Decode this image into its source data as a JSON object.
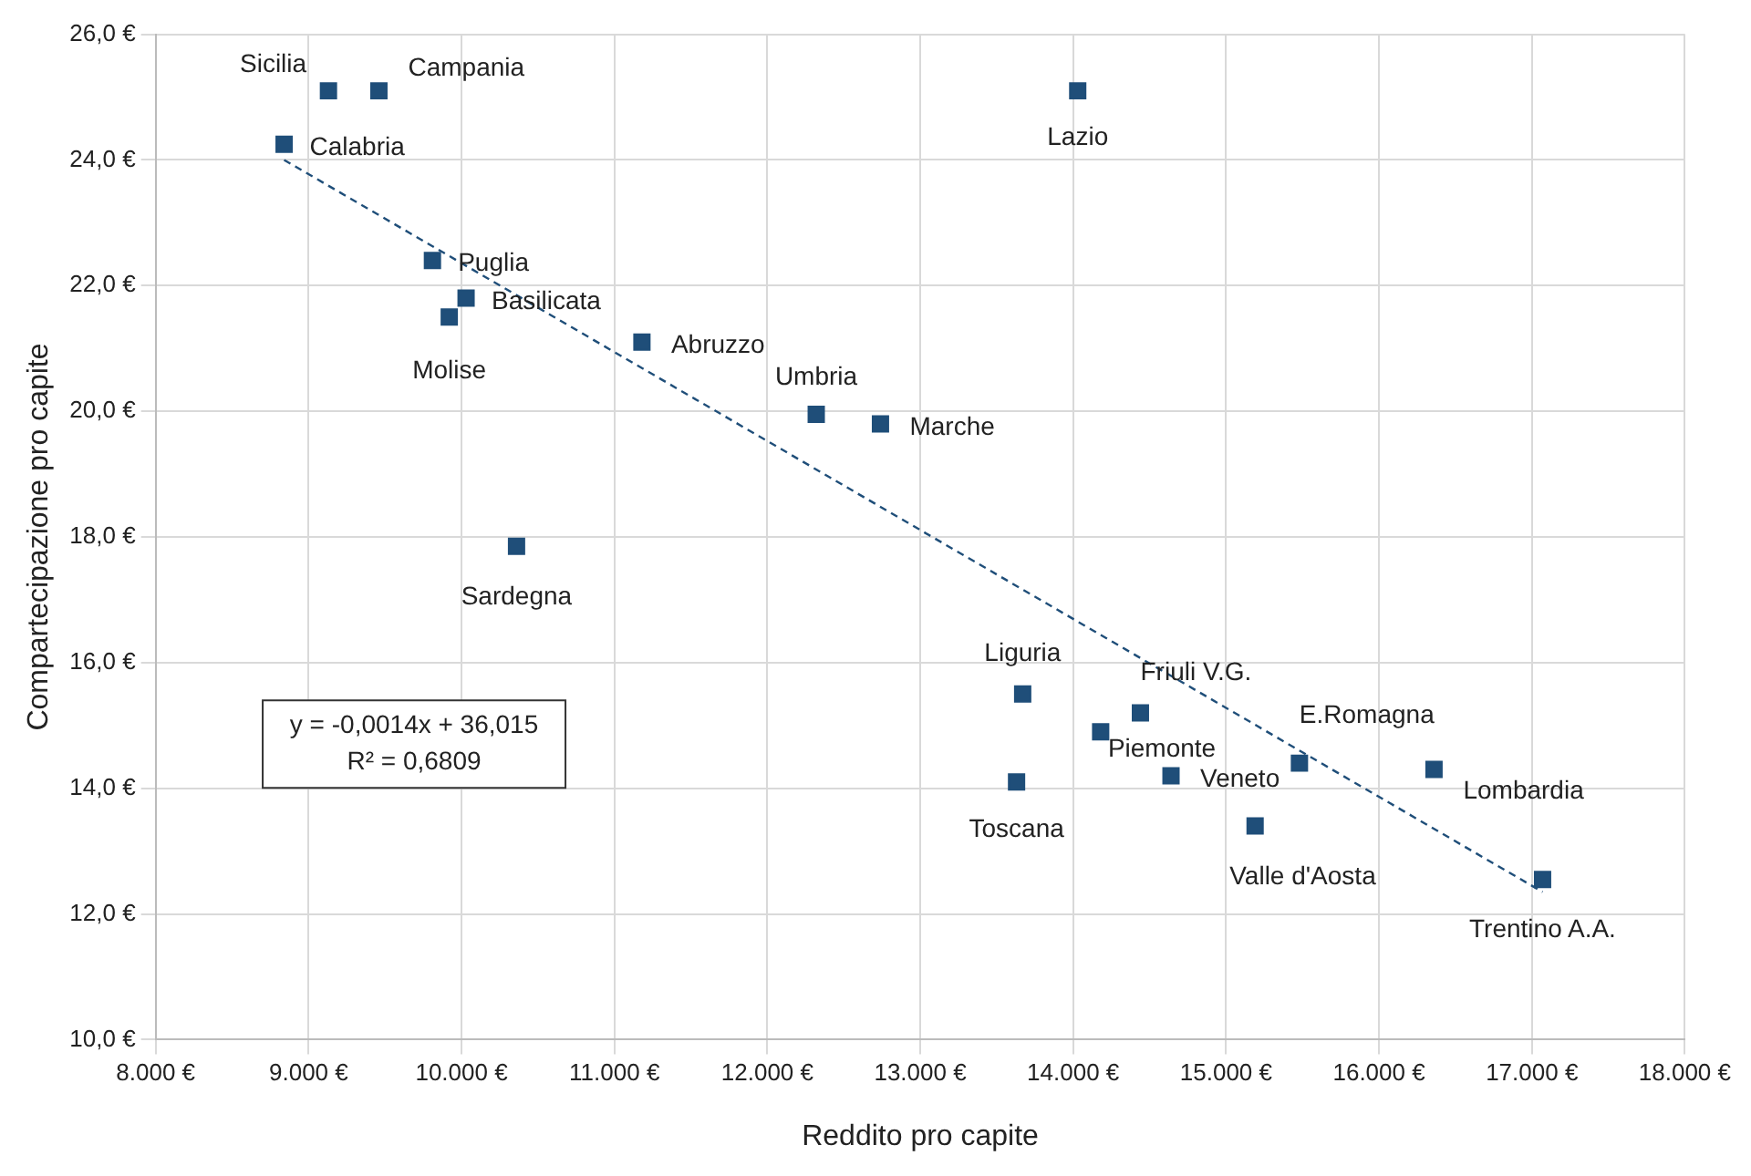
{
  "chart_data": {
    "type": "scatter",
    "xlabel": "Reddito pro capite",
    "ylabel": "Compartecipazione pro capite",
    "xlim": [
      8000,
      18000
    ],
    "ylim": [
      10,
      26
    ],
    "xticks": [
      {
        "value": 8000,
        "label": "8.000 €"
      },
      {
        "value": 9000,
        "label": "9.000 €"
      },
      {
        "value": 10000,
        "label": "10.000 €"
      },
      {
        "value": 11000,
        "label": "11.000 €"
      },
      {
        "value": 12000,
        "label": "12.000 €"
      },
      {
        "value": 13000,
        "label": "13.000 €"
      },
      {
        "value": 14000,
        "label": "14.000 €"
      },
      {
        "value": 15000,
        "label": "15.000 €"
      },
      {
        "value": 16000,
        "label": "16.000 €"
      },
      {
        "value": 17000,
        "label": "17.000 €"
      },
      {
        "value": 18000,
        "label": "18.000 €"
      }
    ],
    "yticks": [
      {
        "value": 10,
        "label": "10,0 €"
      },
      {
        "value": 12,
        "label": "12,0 €"
      },
      {
        "value": 14,
        "label": "14,0 €"
      },
      {
        "value": 16,
        "label": "16,0 €"
      },
      {
        "value": 18,
        "label": "18,0 €"
      },
      {
        "value": 20,
        "label": "20,0 €"
      },
      {
        "value": 22,
        "label": "22,0 €"
      },
      {
        "value": 24,
        "label": "24,0 €"
      },
      {
        "value": 26,
        "label": "26,0 €"
      }
    ],
    "grid": true,
    "legend": false,
    "marker": "square",
    "series": [
      {
        "type": "scatter",
        "color": "#1f4e79",
        "x": [
          9130,
          9460,
          8840,
          14030,
          9810,
          10030,
          9920,
          11180,
          12320,
          12740,
          10360,
          13670,
          13630,
          14440,
          14180,
          14640,
          15480,
          15190,
          16360,
          17070
        ],
        "values": [
          25.1,
          25.1,
          24.25,
          25.1,
          22.4,
          21.8,
          21.5,
          21.1,
          19.95,
          19.8,
          17.85,
          15.5,
          14.1,
          15.2,
          14.9,
          14.2,
          14.4,
          13.4,
          14.3,
          12.55
        ]
      },
      {
        "type": "line",
        "color": "#1f4e79",
        "line_style": "dashed",
        "marker": "none",
        "x": [
          8840,
          17070
        ],
        "values": [
          24.0,
          12.35
        ]
      }
    ],
    "annotations": [
      {
        "text": "Sicilia",
        "x": 9130,
        "y": 25.1
      },
      {
        "text": "Campania",
        "x": 9460,
        "y": 25.1
      },
      {
        "text": "Calabria",
        "x": 8840,
        "y": 24.25
      },
      {
        "text": "Lazio",
        "x": 14030,
        "y": 25.1
      },
      {
        "text": "Puglia",
        "x": 9810,
        "y": 22.4
      },
      {
        "text": "Basilicata",
        "x": 10030,
        "y": 21.8
      },
      {
        "text": "Molise",
        "x": 9920,
        "y": 21.5
      },
      {
        "text": "Abruzzo",
        "x": 11180,
        "y": 21.1
      },
      {
        "text": "Umbria",
        "x": 12320,
        "y": 19.95
      },
      {
        "text": "Marche",
        "x": 12740,
        "y": 19.8
      },
      {
        "text": "Sardegna",
        "x": 10360,
        "y": 17.85
      },
      {
        "text": "Liguria",
        "x": 13670,
        "y": 15.5
      },
      {
        "text": "Toscana",
        "x": 13630,
        "y": 14.1
      },
      {
        "text": "Friuli V.G.",
        "x": 14440,
        "y": 15.2
      },
      {
        "text": "Piemonte",
        "x": 14180,
        "y": 14.9
      },
      {
        "text": "Veneto",
        "x": 14640,
        "y": 14.2
      },
      {
        "text": "E.Romagna",
        "x": 15480,
        "y": 14.4
      },
      {
        "text": "Valle d'Aosta",
        "x": 15190,
        "y": 13.4
      },
      {
        "text": "Lombardia",
        "x": 16360,
        "y": 14.3
      },
      {
        "text": "Trentino A.A.",
        "x": 17070,
        "y": 12.55
      },
      "y = -0,0014x + 36,015\nR² = 0,6809"
    ]
  }
}
